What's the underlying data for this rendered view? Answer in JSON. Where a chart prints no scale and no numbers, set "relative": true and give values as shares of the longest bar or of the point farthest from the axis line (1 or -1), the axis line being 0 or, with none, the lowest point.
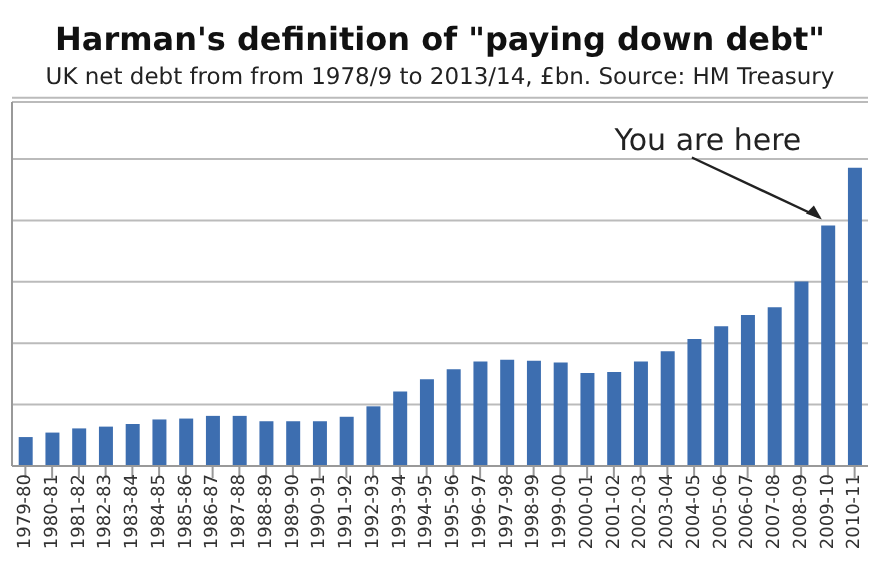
{
  "chart_data": {
    "type": "bar",
    "title": "Harman's definition of \"paying down debt\"",
    "subtitle": "UK net debt from from 1978/9 to 2013/14, £bn. Source: HM Treasury",
    "categories": [
      "1979-80",
      "1980-81",
      "1981-82",
      "1982-83",
      "1983-84",
      "1984-85",
      "1985-86",
      "1986-87",
      "1987-88",
      "1988-89",
      "1989-90",
      "1990-91",
      "1991-92",
      "1992-93",
      "1993-94",
      "1994-95",
      "1995-96",
      "1996-97",
      "1997-98",
      "1998-99",
      "1999-00",
      "2000-01",
      "2001-02",
      "2002-03",
      "2003-04",
      "2004-05",
      "2005-06",
      "2006-07",
      "2007-08",
      "2008-09",
      "2009-10",
      "2010-11"
    ],
    "values": [
      0.097,
      0.112,
      0.126,
      0.132,
      0.141,
      0.156,
      0.159,
      0.168,
      0.168,
      0.15,
      0.15,
      0.15,
      0.165,
      0.2,
      0.25,
      0.291,
      0.324,
      0.35,
      0.356,
      0.353,
      0.347,
      0.312,
      0.315,
      0.35,
      0.385,
      0.426,
      0.468,
      0.506,
      0.532,
      0.618,
      0.806,
      1
    ],
    "color": "#3d6eb0",
    "relative": true,
    "grid": "y",
    "annotations": [
      {
        "text": "You are here",
        "x": "2009-10",
        "y": 0.806
      }
    ]
  }
}
